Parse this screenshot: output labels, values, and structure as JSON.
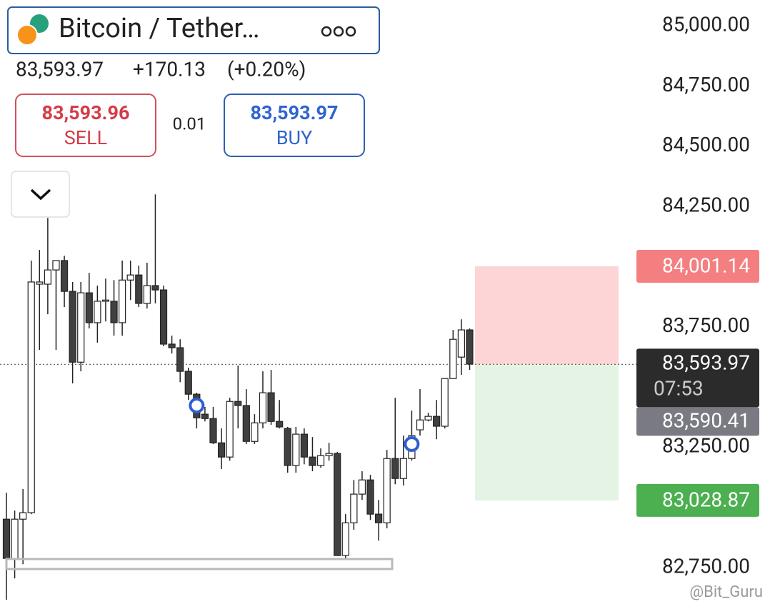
{
  "header": {
    "title": "Bitcoin / Tether…",
    "price": "83,593.97",
    "change": "+170.13",
    "change_pct": "(+0.20%)"
  },
  "trade": {
    "sell_price": "83,593.96",
    "sell_label": "SELL",
    "spread": "0.01",
    "buy_price": "83,593.97",
    "buy_label": "BUY"
  },
  "chart_data": {
    "type": "candlestick",
    "open": [
      82951,
      82788,
      82951,
      82978,
      83927,
      83927,
      83986,
      84025,
      83897,
      83603,
      83891,
      83767,
      83856,
      83856,
      83767,
      83944,
      83965,
      83847,
      83921,
      83903,
      83678,
      83663,
      83565,
      83470,
      83387,
      83369,
      83268,
      83209,
      83440,
      83423,
      83274,
      83351,
      83476,
      83357,
      83328,
      83174,
      83304,
      83209,
      83174,
      83215,
      83224,
      82800,
      82936,
      83055,
      83114,
      82972,
      82936,
      83203,
      83120,
      83203,
      83322,
      83363,
      83378,
      83337,
      83535,
      83624,
      83737
    ],
    "high": [
      83061,
      82987,
      83076,
      84025,
      84069,
      84202,
      84016,
      84045,
      83936,
      83936,
      83974,
      83921,
      83950,
      83944,
      84025,
      84025,
      84004,
      84016,
      84300,
      83921,
      83713,
      83698,
      83580,
      83476,
      83417,
      83417,
      83328,
      83455,
      83589,
      83491,
      83387,
      83565,
      83571,
      83446,
      83334,
      83334,
      83328,
      83292,
      83245,
      83268,
      83230,
      82972,
      83114,
      83150,
      83135,
      83031,
      83239,
      83455,
      83298,
      83402,
      83491,
      83393,
      83446,
      83535,
      83737,
      83781,
      83743
    ],
    "low": [
      82616,
      82705,
      82764,
      82972,
      83654,
      83802,
      83654,
      83832,
      83515,
      83565,
      83743,
      83684,
      83772,
      83713,
      83713,
      83861,
      83832,
      83826,
      83847,
      83669,
      83639,
      83520,
      83446,
      83328,
      83357,
      83263,
      83159,
      83194,
      83328,
      83263,
      83263,
      83328,
      83343,
      83328,
      83144,
      83144,
      83179,
      83150,
      83165,
      83194,
      82800,
      82788,
      82907,
      83031,
      82948,
      82862,
      82913,
      83096,
      83091,
      83194,
      83298,
      83357,
      83283,
      83328,
      83535,
      83550,
      83571
    ],
    "close": [
      82788,
      82951,
      82978,
      83936,
      83936,
      83986,
      84025,
      83897,
      83603,
      83891,
      83767,
      83856,
      83861,
      83767,
      83944,
      83965,
      83847,
      83921,
      83903,
      83678,
      83663,
      83565,
      83470,
      83372,
      83369,
      83268,
      83209,
      83440,
      83423,
      83274,
      83351,
      83476,
      83357,
      83334,
      83174,
      83304,
      83209,
      83174,
      83215,
      83224,
      82800,
      82936,
      83055,
      83114,
      82972,
      82936,
      83203,
      83120,
      83203,
      83298,
      83363,
      83378,
      83337,
      83535,
      83698,
      83737,
      83595
    ],
    "up_color": "#ffffff",
    "down_color": "#404040",
    "wick_color": "#222222",
    "ylim": [
      82578,
      85107
    ],
    "yticks": [
      {
        "value": 85000,
        "label": "85,000.00"
      },
      {
        "value": 84750,
        "label": "84,750.00"
      },
      {
        "value": 84500,
        "label": "84,500.00"
      },
      {
        "value": 84250,
        "label": "84,250.00"
      },
      {
        "value": 83750,
        "label": "83,750.00"
      },
      {
        "value": 83250,
        "label": "83,250.00"
      },
      {
        "value": 82750,
        "label": "82,750.00"
      }
    ],
    "last_price": {
      "value": 83593.97,
      "label": "83,593.97",
      "color": "#2b2b2b"
    },
    "countdown": "07:53",
    "levels": [
      {
        "value": 84001.14,
        "label": "84,001.14",
        "color": "#f47f80",
        "zone_color": "#fdd5d6"
      },
      {
        "value": 83590.41,
        "label": "83,590.41",
        "color": "#7a7a82"
      },
      {
        "value": 83028.87,
        "label": "83,028.87",
        "color": "#4caf50",
        "zone_color": "#e5f3e5"
      }
    ],
    "markers": [
      {
        "index": 23,
        "value": 83423
      },
      {
        "index": 49,
        "value": 83263
      }
    ],
    "watermark": "@Bit_Guru"
  }
}
